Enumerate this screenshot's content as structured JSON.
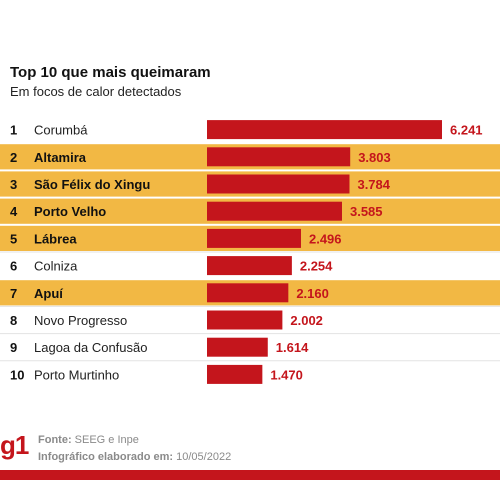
{
  "chart_data": {
    "type": "bar",
    "orientation": "horizontal",
    "title": "Top 10 que mais queimaram",
    "subtitle": "Em focos de calor detectados",
    "ranks": [
      "1",
      "2",
      "3",
      "4",
      "5",
      "6",
      "7",
      "8",
      "9",
      "10"
    ],
    "categories": [
      "Corumbá",
      "Altamira",
      "São Félix do Xingu",
      "Porto Velho",
      "Lábrea",
      "Colniza",
      "Apuí",
      "Novo Progresso",
      "Lagoa da Confusão",
      "Porto Murtinho"
    ],
    "values": [
      6241,
      3803,
      3784,
      3585,
      2496,
      2254,
      2160,
      2002,
      1614,
      1470
    ],
    "value_labels": [
      "6.241",
      "3.803",
      "3.784",
      "3.585",
      "2.496",
      "2.254",
      "2.160",
      "2.002",
      "1.614",
      "1.470"
    ],
    "highlighted": [
      false,
      true,
      true,
      true,
      true,
      false,
      true,
      false,
      false,
      false
    ],
    "xlim": [
      0,
      6241
    ],
    "grid": false,
    "colors": {
      "bar": "#c4151c",
      "value_text": "#c4151c",
      "highlight_row": "#f2b844",
      "plain_row": "#f1f1f1"
    }
  },
  "footer": {
    "logo": "g1",
    "source_label": "Fonte:",
    "source_value": "SEEG e Inpe",
    "made_label": "Infográfico elaborado em:",
    "made_value": "10/05/2022"
  }
}
